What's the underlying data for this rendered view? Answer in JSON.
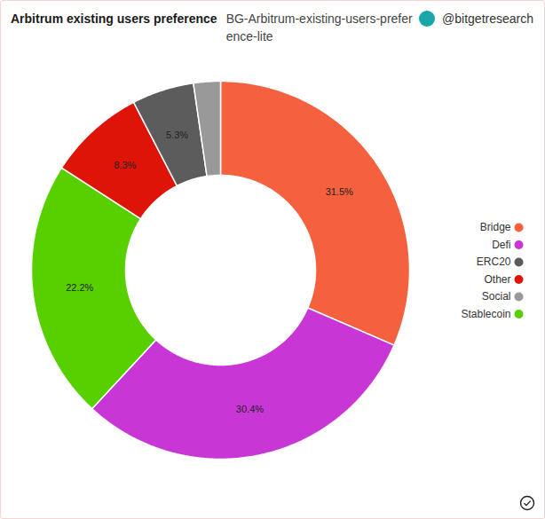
{
  "chart_data": {
    "type": "pie",
    "title": "Arbitrum existing users preference",
    "subtitle": "BG-Arbitrum-existing-users-preference-lite",
    "source": "@bitgetresearch",
    "categories": [
      "Bridge",
      "Defi",
      "Stablecoin",
      "Other",
      "ERC20",
      "Social"
    ],
    "values": [
      31.5,
      30.4,
      22.2,
      8.3,
      5.3,
      2.3
    ],
    "value_labels": [
      "31.5%",
      "30.4%",
      "22.2%",
      "8.3%",
      "5.3%",
      null
    ],
    "colors": [
      "#f5603f",
      "#c837d6",
      "#58d000",
      "#df1409",
      "#5c5c5c",
      "#999999"
    ],
    "data_labels": true,
    "legend": "right"
  }
}
